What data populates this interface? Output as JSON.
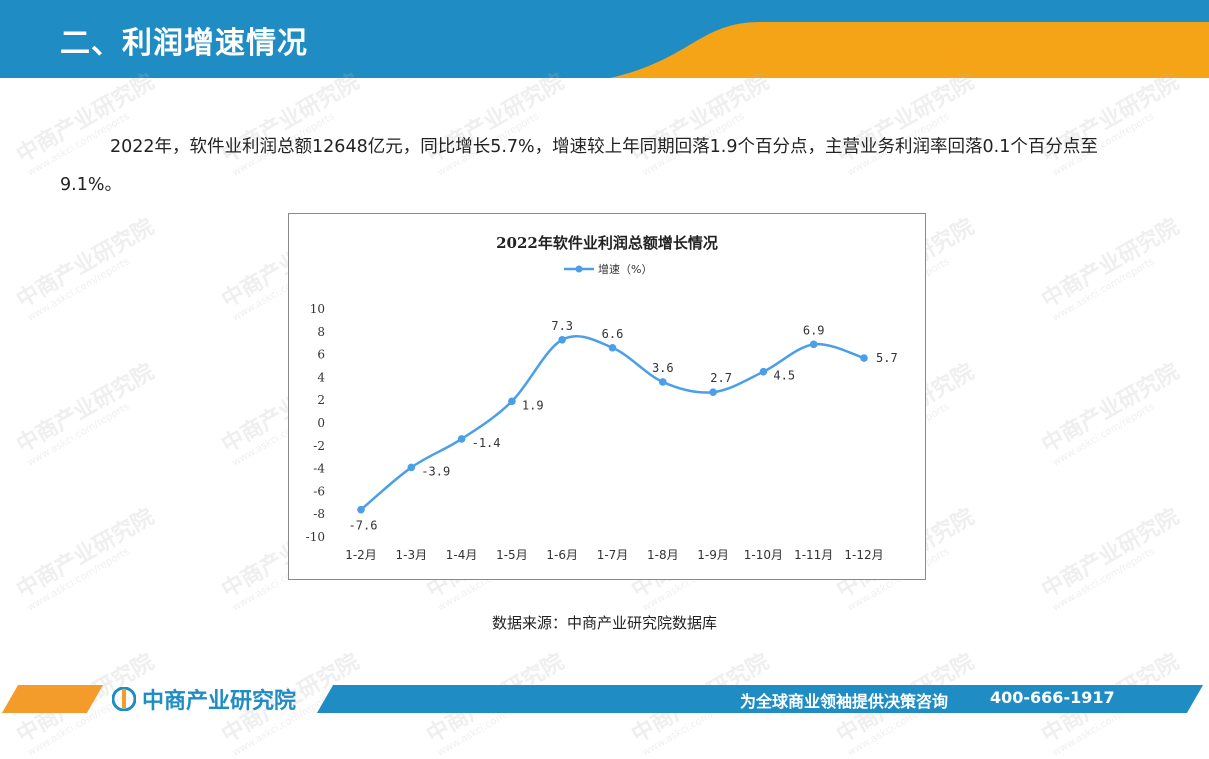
{
  "header": {
    "title": "二、利润增速情况"
  },
  "watermark": {
    "text": "中商产业研究院",
    "url": "www.askci.com/reports"
  },
  "intro": {
    "paragraph": "2022年，软件业利润总额12648亿元，同比增长5.7%，增速较上年同期回落1.9个百分点，主营业务利润率回落0.1个百分点至9.1%。"
  },
  "chart_data": {
    "type": "line",
    "title": "2022年软件业利润总额增长情况",
    "categories": [
      "1-2月",
      "1-3月",
      "1-4月",
      "1-5月",
      "1-6月",
      "1-7月",
      "1-8月",
      "1-9月",
      "1-10月",
      "1-11月",
      "1-12月"
    ],
    "series": [
      {
        "name": "增速（%）",
        "values": [
          -7.6,
          -3.9,
          -1.4,
          1.9,
          7.3,
          6.6,
          3.6,
          2.7,
          4.5,
          6.9,
          5.7
        ]
      }
    ],
    "ylim": [
      -10,
      10
    ],
    "yticks": [
      10,
      8,
      6,
      4,
      2,
      0,
      -2,
      -4,
      -6,
      -8,
      -10
    ],
    "line_color": "#4a9fe8",
    "legend_position": "top",
    "grid": false
  },
  "source": {
    "text": "数据来源：中商产业研究院数据库"
  },
  "footer": {
    "logo": "中商产业研究院",
    "slogan": "为全球商业领袖提供决策咨询",
    "phone": "400-666-1917"
  },
  "colors": {
    "brand_blue": "#1f8dc4",
    "brand_orange": "#f39c2b"
  }
}
